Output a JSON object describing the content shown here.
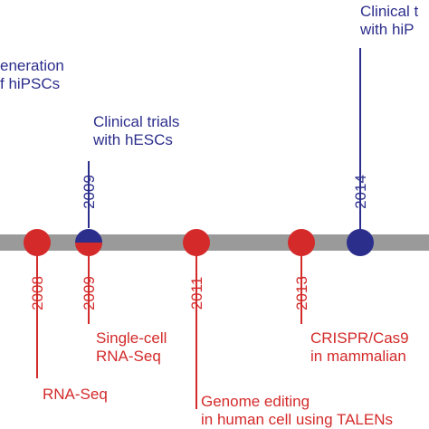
{
  "colors": {
    "timeline_bar": "#9a9a9a",
    "blue": "#2c2e8c",
    "red": "#d42a2a",
    "background": "#ffffff"
  },
  "events": [
    {
      "id": "hipsc-generation",
      "color": "blue",
      "year": "",
      "text": "eneration\nf hiPSCs"
    },
    {
      "id": "hesc-trials",
      "color": "blue",
      "year": "2009",
      "text": "Clinical trials\nwith hESCs"
    },
    {
      "id": "hipsc-trials",
      "color": "blue",
      "year": "2014",
      "text": "Clinical t\nwith hiP"
    },
    {
      "id": "rna-seq",
      "color": "red",
      "year": "2008",
      "text": "RNA-Seq"
    },
    {
      "id": "single-cell",
      "color": "red",
      "year": "2009",
      "text": "Single-cell\nRNA-Seq"
    },
    {
      "id": "genome-editing",
      "color": "red",
      "year": "2011",
      "text": "Genome editing\nin human cell using TALENs"
    },
    {
      "id": "crispr",
      "color": "red",
      "year": "2013",
      "text": "CRISPR/Cas9\nin mammalian"
    }
  ]
}
